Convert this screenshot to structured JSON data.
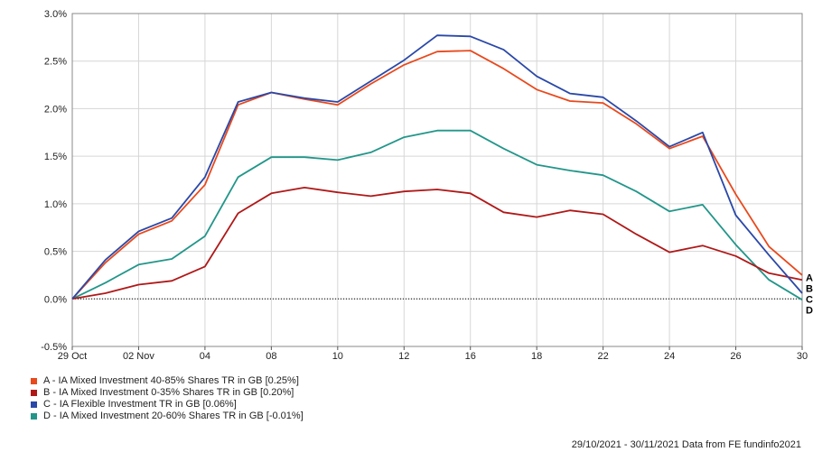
{
  "chart_data": {
    "type": "line",
    "ylim": [
      -0.5,
      3.0
    ],
    "y_ticks": [
      "-0.5%",
      "0.0%",
      "0.5%",
      "1.0%",
      "1.5%",
      "2.0%",
      "2.5%",
      "3.0%"
    ],
    "x_ticks": [
      {
        "label": "29 Oct",
        "x": 0
      },
      {
        "label": "02 Nov",
        "x": 2
      },
      {
        "label": "04",
        "x": 4
      },
      {
        "label": "08",
        "x": 6
      },
      {
        "label": "10",
        "x": 8
      },
      {
        "label": "12",
        "x": 10
      },
      {
        "label": "16",
        "x": 12
      },
      {
        "label": "18",
        "x": 14
      },
      {
        "label": "22",
        "x": 16
      },
      {
        "label": "24",
        "x": 18
      },
      {
        "label": "26",
        "x": 20
      },
      {
        "label": "30",
        "x": 22
      }
    ],
    "grid": true,
    "legend_position": "bottom-left",
    "series": [
      {
        "letter": "A",
        "name": "A - IA Mixed Investment 40-85% Shares TR in GB [0.25%]",
        "color": "#e8491d",
        "values": [
          0.0,
          0.38,
          0.68,
          0.82,
          1.2,
          2.04,
          2.17,
          2.1,
          2.04,
          2.26,
          2.46,
          2.6,
          2.61,
          2.42,
          2.2,
          2.08,
          2.06,
          1.84,
          1.58,
          1.71,
          1.1,
          0.55,
          0.25
        ]
      },
      {
        "letter": "B",
        "name": "B - IA Mixed Investment 0-35% Shares TR in GB [0.20%]",
        "color": "#b01818",
        "values": [
          0.0,
          0.06,
          0.15,
          0.19,
          0.34,
          0.9,
          1.11,
          1.17,
          1.12,
          1.08,
          1.13,
          1.15,
          1.11,
          0.91,
          0.86,
          0.93,
          0.89,
          0.68,
          0.49,
          0.56,
          0.45,
          0.27,
          0.2
        ]
      },
      {
        "letter": "C",
        "name": "C - IA Flexible Investment TR in GB [0.06%]",
        "color": "#2a48a8",
        "values": [
          0.0,
          0.41,
          0.71,
          0.85,
          1.28,
          2.07,
          2.17,
          2.11,
          2.07,
          2.29,
          2.51,
          2.77,
          2.76,
          2.62,
          2.34,
          2.16,
          2.12,
          1.87,
          1.6,
          1.75,
          0.88,
          0.46,
          0.06
        ]
      },
      {
        "letter": "D",
        "name": "D - IA Mixed Investment 20-60% Shares TR in GB [-0.01%]",
        "color": "#22968a",
        "values": [
          0.0,
          0.17,
          0.36,
          0.42,
          0.66,
          1.28,
          1.49,
          1.49,
          1.46,
          1.54,
          1.7,
          1.77,
          1.77,
          1.58,
          1.41,
          1.35,
          1.3,
          1.13,
          0.92,
          0.99,
          0.57,
          0.2,
          -0.01
        ]
      }
    ],
    "end_labels": [
      "A",
      "B",
      "C",
      "D"
    ]
  },
  "footer": "29/10/2021 - 30/11/2021 Data from FE fundinfo2021"
}
